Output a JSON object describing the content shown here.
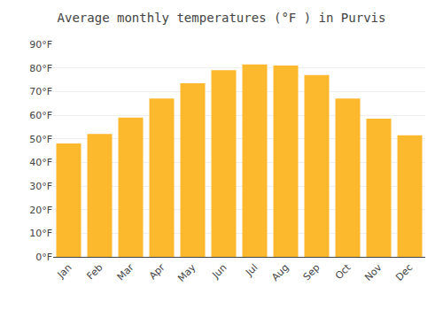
{
  "chart_data": {
    "type": "bar",
    "title": "Average monthly temperatures (°F ) in Purvis",
    "categories": [
      "Jan",
      "Feb",
      "Mar",
      "Apr",
      "May",
      "Jun",
      "Jul",
      "Aug",
      "Sep",
      "Oct",
      "Nov",
      "Dec"
    ],
    "values": [
      48,
      52,
      59,
      67,
      73.5,
      79,
      81.5,
      81,
      77,
      67,
      58.5,
      51.5
    ],
    "color": "#FDB92E",
    "ylim": [
      0,
      90
    ],
    "yticks": [
      {
        "value": 0,
        "label": "0°F"
      },
      {
        "value": 10,
        "label": "10°F"
      },
      {
        "value": 20,
        "label": "20°F"
      },
      {
        "value": 30,
        "label": "30°F"
      },
      {
        "value": 40,
        "label": "40°F"
      },
      {
        "value": 50,
        "label": "50°F"
      },
      {
        "value": 60,
        "label": "60°F"
      },
      {
        "value": 70,
        "label": "70°F"
      },
      {
        "value": 80,
        "label": "80°F"
      },
      {
        "value": 90,
        "label": "90°F"
      }
    ],
    "grid": true
  }
}
